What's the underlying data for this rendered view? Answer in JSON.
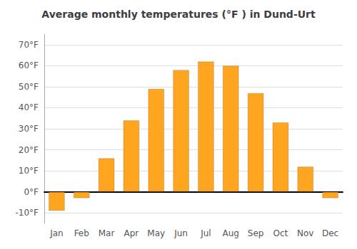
{
  "chart_data": {
    "type": "bar",
    "title": "Average monthly temperatures (°F ) in Dund-Urt",
    "categories": [
      "Jan",
      "Feb",
      "Mar",
      "Apr",
      "May",
      "Jun",
      "Jul",
      "Aug",
      "Sep",
      "Oct",
      "Nov",
      "Dec"
    ],
    "values": [
      -9,
      -3,
      16,
      34,
      49,
      58,
      62,
      60,
      47,
      33,
      12,
      -3
    ],
    "color": "#FFA520",
    "ylim": [
      -15,
      75
    ],
    "yticks": [
      {
        "value": -10,
        "label": "-10°F"
      },
      {
        "value": 0,
        "label": "0°F"
      },
      {
        "value": 10,
        "label": "10°F"
      },
      {
        "value": 20,
        "label": "20°F"
      },
      {
        "value": 30,
        "label": "30°F"
      },
      {
        "value": 40,
        "label": "40°F"
      },
      {
        "value": 50,
        "label": "50°F"
      },
      {
        "value": 60,
        "label": "60°F"
      },
      {
        "value": 70,
        "label": "70°F"
      }
    ],
    "grid": true
  }
}
